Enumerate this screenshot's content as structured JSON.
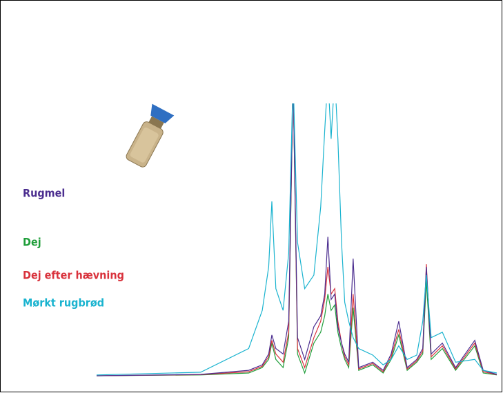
{
  "chart_data": {
    "type": "line",
    "x": [
      0,
      26,
      38,
      41.4,
      43,
      43.8,
      44.8,
      46.6,
      48,
      49.1,
      50.2,
      52,
      54.3,
      56,
      57,
      57.8,
      58.6,
      59.5,
      60.3,
      61.2,
      62,
      63,
      64.1,
      65.5,
      69,
      71.6,
      73.6,
      75.5,
      77.6,
      80,
      81.5,
      82.4,
      83.6,
      86.4,
      89.7,
      94.5,
      96.6,
      100
    ],
    "xlim": [
      0,
      100
    ],
    "ylim": [
      0,
      100
    ],
    "series": [
      {
        "name": "Rugmel",
        "color": "#4b2d8f",
        "values": [
          0,
          0.5,
          2,
          4,
          8,
          15,
          10,
          8,
          20,
          110,
          14,
          6,
          18,
          22,
          30,
          51,
          28,
          30,
          18,
          12,
          8,
          5,
          43,
          3,
          5,
          2,
          8,
          20,
          3,
          6,
          10,
          40,
          8,
          12,
          3,
          13,
          2,
          0.5
        ]
      },
      {
        "name": "Dej",
        "color": "#1f9e3a",
        "values": [
          0,
          0.3,
          1,
          3,
          6,
          12,
          6,
          3,
          14,
          110,
          8,
          1,
          12,
          16,
          22,
          30,
          24,
          26,
          16,
          10,
          6,
          3,
          25,
          2,
          4,
          1,
          6,
          15,
          2,
          5,
          8,
          35,
          6,
          10,
          2,
          11,
          1,
          0.3
        ]
      },
      {
        "name": "Dej efter hævning",
        "color": "#d9323c",
        "values": [
          0,
          0.4,
          1.5,
          3.5,
          7,
          13,
          8,
          5,
          16,
          110,
          10,
          3,
          14,
          20,
          28,
          40,
          30,
          32,
          20,
          12,
          7,
          4,
          30,
          2.5,
          4.5,
          1.5,
          7,
          17,
          2.5,
          5.5,
          9,
          41,
          7,
          11,
          2.5,
          12,
          1.5,
          0.4
        ]
      },
      {
        "name": "Mørkt rugbrød",
        "color": "#19b3cf",
        "values": [
          0.3,
          1.3,
          10,
          24,
          40,
          64,
          32,
          24,
          45,
          110,
          49,
          32,
          37,
          62,
          90,
          110,
          87,
          110,
          87,
          49,
          27,
          20,
          14,
          10,
          7.6,
          4,
          6,
          11,
          6,
          7.6,
          20,
          37,
          14,
          16,
          5,
          6,
          2,
          1
        ]
      }
    ]
  }
}
